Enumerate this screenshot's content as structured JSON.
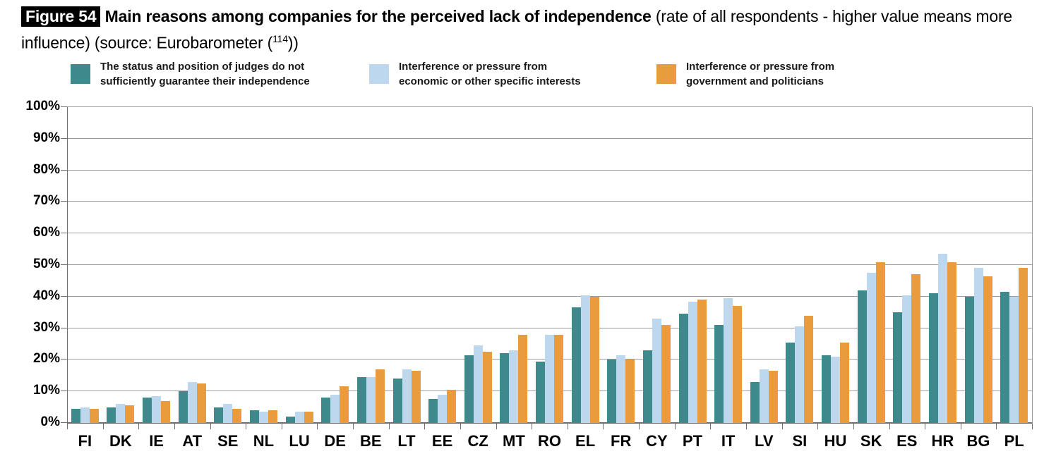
{
  "title": {
    "figure_label": "Figure 54",
    "main_bold": "Main reasons among companies for the perceived lack of independence",
    "subtitle_pre": "(rate of all respondents - higher value means more influence) (source: Eurobarometer (",
    "footnote_sup": "114",
    "subtitle_post": "))"
  },
  "colors": {
    "grid": "#9b9b9b",
    "axis": "#6e6e6e",
    "series_teal": "#3D898B",
    "series_lightblue": "#BDD7EE",
    "series_orange": "#E89C3E"
  },
  "chart_data": {
    "type": "bar",
    "title": "Main reasons among companies for the perceived lack of independence",
    "categories": [
      "FI",
      "DK",
      "IE",
      "AT",
      "SE",
      "NL",
      "LU",
      "DE",
      "BE",
      "LT",
      "EE",
      "CZ",
      "MT",
      "RO",
      "EL",
      "FR",
      "CY",
      "PT",
      "IT",
      "LV",
      "SI",
      "HU",
      "SK",
      "ES",
      "HR",
      "BG",
      "PL"
    ],
    "series": [
      {
        "name": "The status and position of judges do not sufficiently guarantee their independence",
        "color": "#3D898B",
        "values": [
          4.5,
          5,
          8,
          10,
          5,
          4,
          2,
          8,
          14.5,
          14,
          7.5,
          21.5,
          22,
          19.5,
          36.5,
          20,
          23,
          34.5,
          31,
          13,
          25.5,
          21.5,
          42,
          35,
          41,
          40,
          41.5
        ]
      },
      {
        "name": "Interference or pressure from economic or other specific interests",
        "color": "#BDD7EE",
        "values": [
          5,
          6,
          8.5,
          13,
          6,
          3.5,
          3.5,
          9,
          14.5,
          17,
          9,
          24.5,
          23,
          28,
          40.5,
          21.5,
          33,
          38.5,
          39.5,
          17,
          30.5,
          21,
          47.5,
          40.5,
          53.5,
          49,
          40
        ]
      },
      {
        "name": "Interference or pressure from government and politicians",
        "color": "#E89C3E",
        "values": [
          4.5,
          5.5,
          7,
          12.5,
          4.5,
          4,
          3.5,
          11.5,
          17,
          16.5,
          10.5,
          22.5,
          28,
          28,
          40,
          20,
          31,
          39,
          37,
          16.5,
          34,
          25.5,
          51,
          47,
          51,
          46.5,
          49
        ]
      }
    ],
    "y_axis": {
      "min": 0,
      "max": 100,
      "step": 10,
      "unit": "%",
      "tick_labels": [
        "0%",
        "10%",
        "20%",
        "30%",
        "40%",
        "50%",
        "60%",
        "70%",
        "80%",
        "90%",
        "100%"
      ]
    },
    "grid": true,
    "legend_position": "top"
  }
}
